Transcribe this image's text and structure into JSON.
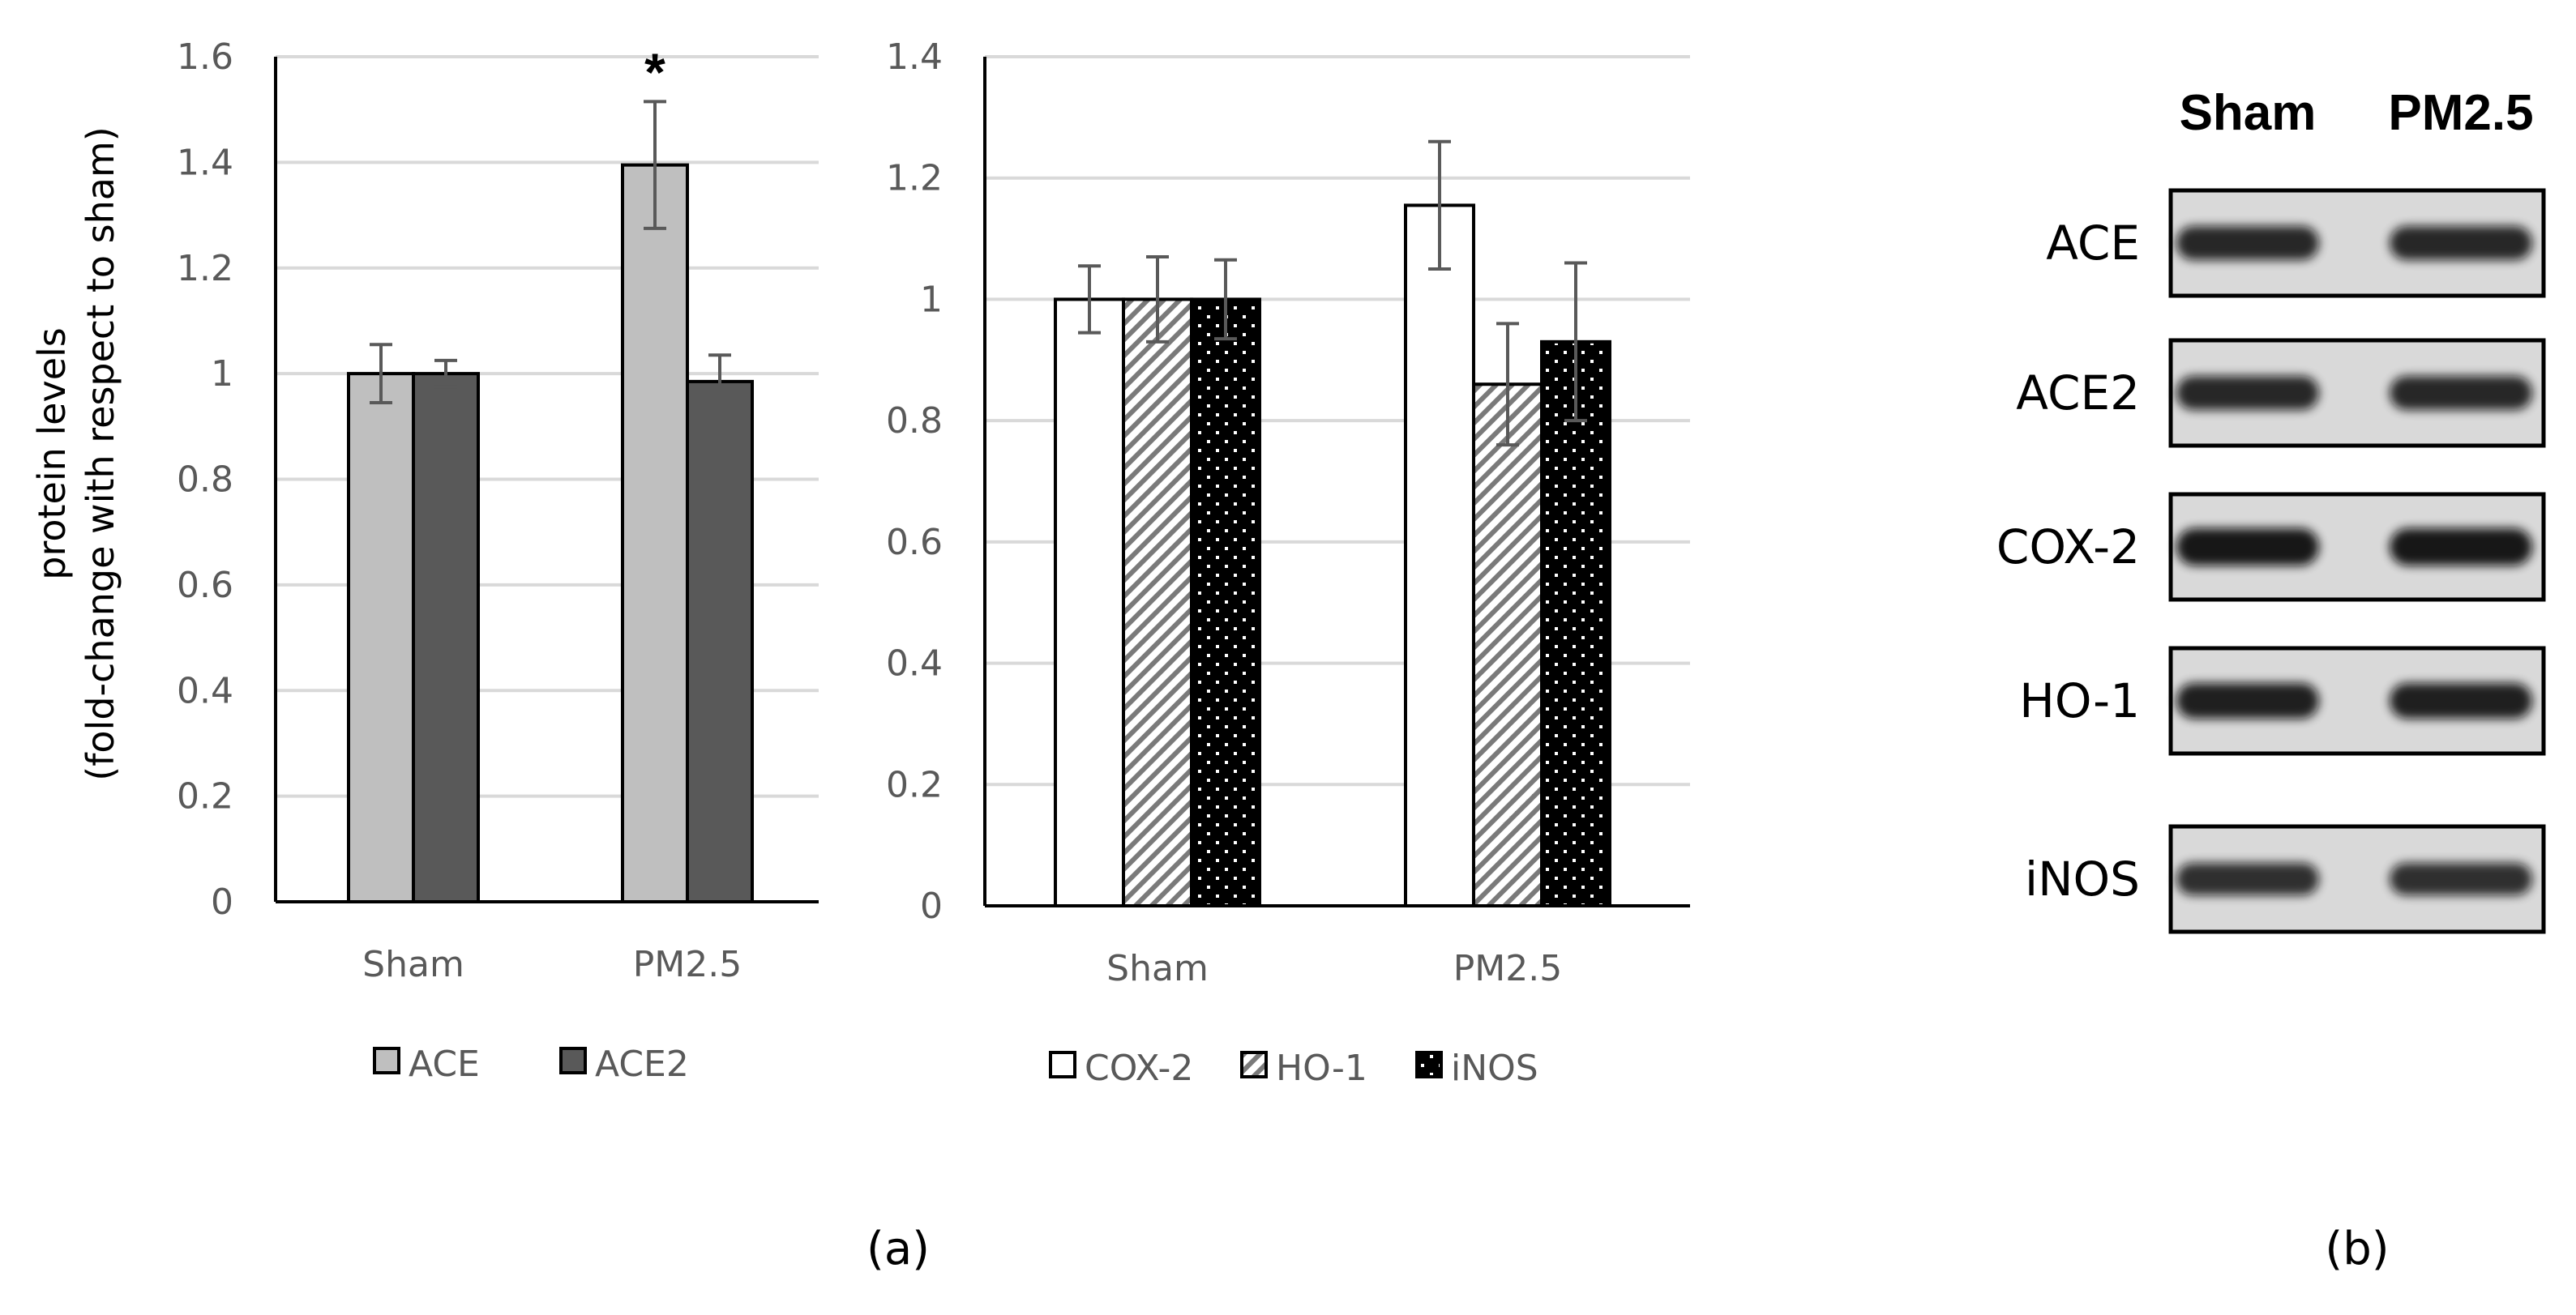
{
  "chart_data": [
    {
      "type": "bar",
      "panel": "left",
      "categories": [
        "Sham",
        "PM2.5"
      ],
      "series": [
        {
          "name": "ACE",
          "values": [
            1.0,
            1.395
          ],
          "errors": [
            0.055,
            0.12
          ],
          "color": "#bfbfbf",
          "pattern": "solid"
        },
        {
          "name": "ACE2",
          "values": [
            1.0,
            0.985
          ],
          "errors": [
            0.025,
            0.05
          ],
          "color": "#595959",
          "pattern": "solid"
        }
      ],
      "ylim": [
        0,
        1.6
      ],
      "yticks": [
        "0",
        "0.2",
        "0.4",
        "0.6",
        "0.8",
        "1",
        "1.2",
        "1.4",
        "1.6"
      ],
      "ytick_values": [
        0,
        0.2,
        0.4,
        0.6,
        0.8,
        1.0,
        1.2,
        1.4,
        1.6
      ],
      "ylabel_line1": "protein levels",
      "ylabel_line2": "(fold-change with respect to sham)",
      "annotation": "*",
      "legend_position": "bottom",
      "grid": true
    },
    {
      "type": "bar",
      "panel": "middle",
      "categories": [
        "Sham",
        "PM2.5"
      ],
      "series": [
        {
          "name": "COX-2",
          "values": [
            1.0,
            1.155
          ],
          "errors": [
            0.055,
            0.105
          ],
          "color": "#ffffff",
          "pattern": "solid"
        },
        {
          "name": "HO-1",
          "values": [
            1.0,
            0.86
          ],
          "errors": [
            0.07,
            0.1
          ],
          "color": "#ffffff",
          "pattern": "hatch"
        },
        {
          "name": "iNOS",
          "values": [
            1.0,
            0.93
          ],
          "errors": [
            0.065,
            0.13
          ],
          "color": "#000000",
          "pattern": "dots"
        }
      ],
      "ylim": [
        0,
        1.4
      ],
      "yticks": [
        "0",
        "0.2",
        "0.4",
        "0.6",
        "0.8",
        "1",
        "1.2",
        "1.4"
      ],
      "ytick_values": [
        0,
        0.2,
        0.4,
        0.6,
        0.8,
        1.0,
        1.2,
        1.4
      ],
      "legend_position": "bottom",
      "grid": true
    }
  ],
  "panel_a_label": "(a)",
  "panel_b_label": "(b)",
  "blot": {
    "columns": [
      "Sham",
      "PM2.5"
    ],
    "rows": [
      {
        "label": "ACE",
        "intensity": 0.8
      },
      {
        "label": "ACE2",
        "intensity": 0.8
      },
      {
        "label": "COX-2",
        "intensity": 1.0
      },
      {
        "label": "HO-1",
        "intensity": 0.9
      },
      {
        "label": "iNOS",
        "intensity": 0.7
      }
    ]
  },
  "colors": {
    "axis": "#000000",
    "grid": "#d9d9d9",
    "tick_text": "#595959",
    "error_bar": "#595959"
  }
}
